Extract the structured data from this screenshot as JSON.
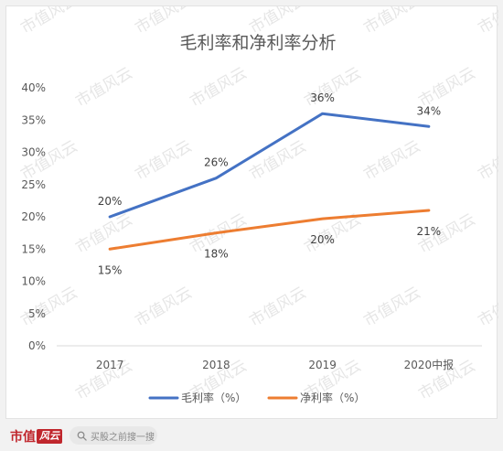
{
  "watermark": {
    "text": "市值风云",
    "color": "#e6e6e6"
  },
  "chart_data": {
    "type": "line",
    "title": "毛利率和净利率分析",
    "categories": [
      "2017",
      "2018",
      "2019",
      "2020中报"
    ],
    "y_ticks": [
      "0%",
      "5%",
      "10%",
      "15%",
      "20%",
      "25%",
      "30%",
      "35%",
      "40%"
    ],
    "ylim": [
      0,
      40
    ],
    "grid": false,
    "legend_position": "bottom",
    "series": [
      {
        "name": "毛利率（%）",
        "color": "#4472c4",
        "values": [
          20,
          26,
          36,
          34
        ],
        "labels": [
          "20%",
          "26%",
          "36%",
          "34%"
        ],
        "label_side": "above"
      },
      {
        "name": "净利率（%）",
        "color": "#ed7d31",
        "values": [
          15,
          17.5,
          19.7,
          21
        ],
        "labels": [
          "15%",
          "18%",
          "20%",
          "21%"
        ],
        "label_side": "below"
      }
    ]
  },
  "footer": {
    "brand_text": "市值",
    "brand_seal": "风云",
    "search_placeholder": "买股之前搜一搜",
    "search_icon": "search-icon"
  }
}
